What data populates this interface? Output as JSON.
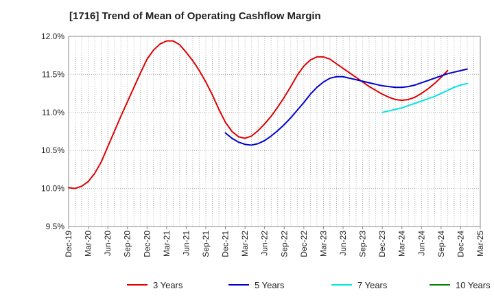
{
  "chart_data": {
    "type": "line",
    "title": "[1716]  Trend of Mean of Operating Cashflow Margin",
    "xlabel": "",
    "ylabel": "",
    "ylim": [
      9.5,
      12.0
    ],
    "yticks": [
      "9.5%",
      "10.0%",
      "10.5%",
      "11.0%",
      "11.5%",
      "12.0%"
    ],
    "ytick_values": [
      9.5,
      10.0,
      10.5,
      11.0,
      11.5,
      12.0
    ],
    "xticks": [
      "Dec-19",
      "Mar-20",
      "Jun-20",
      "Sep-20",
      "Dec-20",
      "Mar-21",
      "Jun-21",
      "Sep-21",
      "Dec-21",
      "Mar-22",
      "Jun-22",
      "Sep-22",
      "Dec-22",
      "Mar-23",
      "Jun-23",
      "Sep-23",
      "Dec-23",
      "Mar-24",
      "Jun-24",
      "Sep-24",
      "Dec-24",
      "Mar-25"
    ],
    "grid": true,
    "legend_position": "bottom",
    "series": [
      {
        "name": "3 Years",
        "color": "#e00000",
        "start_index": 0,
        "values": [
          10.01,
          10.0,
          10.03,
          10.09,
          10.2,
          10.35,
          10.55,
          10.75,
          10.95,
          11.14,
          11.33,
          11.52,
          11.7,
          11.82,
          11.9,
          11.94,
          11.94,
          11.89,
          11.79,
          11.68,
          11.55,
          11.4,
          11.23,
          11.04,
          10.87,
          10.75,
          10.68,
          10.66,
          10.69,
          10.76,
          10.85,
          10.95,
          11.07,
          11.2,
          11.34,
          11.49,
          11.61,
          11.69,
          11.73,
          11.73,
          11.7,
          11.64,
          11.58,
          11.52,
          11.46,
          11.4,
          11.34,
          11.29,
          11.24,
          11.2,
          11.17,
          11.16,
          11.17,
          11.2,
          11.25,
          11.31,
          11.38,
          11.46,
          11.55
        ]
      },
      {
        "name": "5 Years",
        "color": "#0000cc",
        "start_index": 24,
        "values": [
          10.73,
          10.66,
          10.61,
          10.58,
          10.57,
          10.59,
          10.63,
          10.69,
          10.76,
          10.84,
          10.93,
          11.03,
          11.13,
          11.24,
          11.33,
          11.4,
          11.45,
          11.47,
          11.47,
          11.45,
          11.43,
          11.41,
          11.39,
          11.37,
          11.35,
          11.34,
          11.33,
          11.33,
          11.34,
          11.36,
          11.39,
          11.42,
          11.45,
          11.48,
          11.51,
          11.53,
          11.55,
          11.57
        ]
      },
      {
        "name": "7 Years",
        "color": "#00e5e5",
        "start_index": 48,
        "values": [
          11.0,
          11.02,
          11.04,
          11.06,
          11.09,
          11.12,
          11.15,
          11.18,
          11.21,
          11.25,
          11.29,
          11.33,
          11.36,
          11.38
        ]
      },
      {
        "name": "10 Years",
        "color": "#008000",
        "start_index": 0,
        "values": []
      }
    ]
  }
}
